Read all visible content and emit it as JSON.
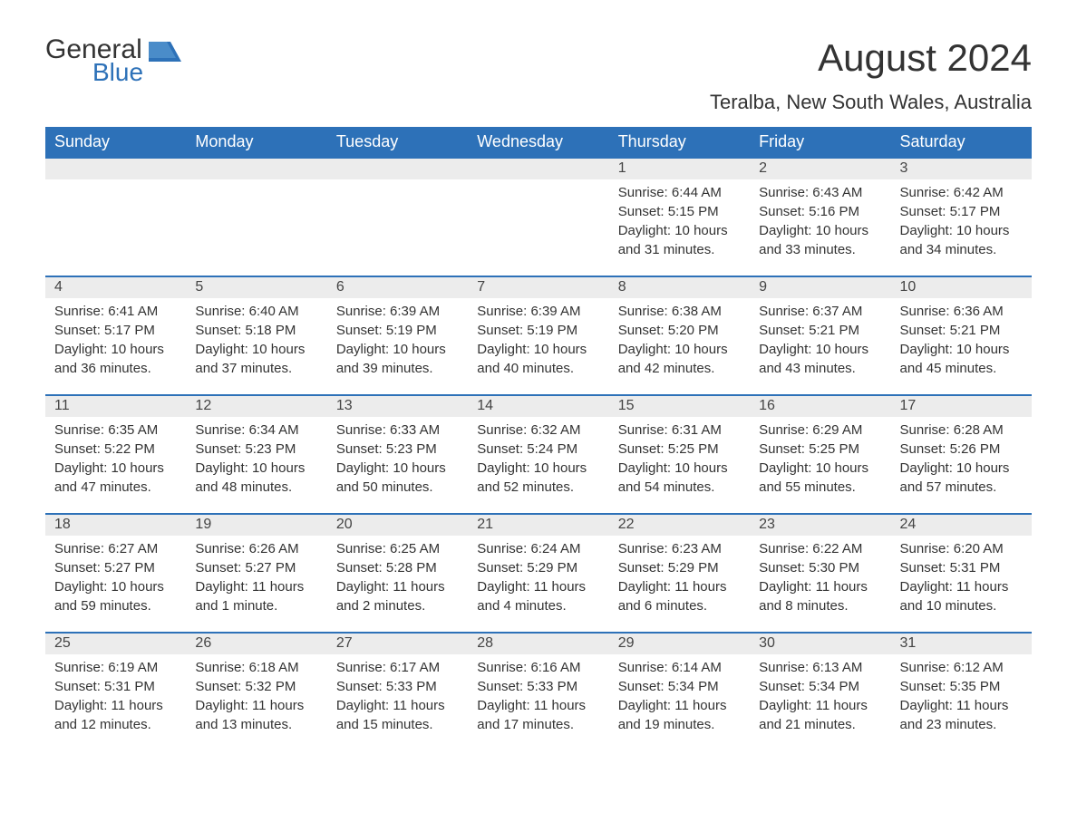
{
  "logo": {
    "general": "General",
    "blue": "Blue",
    "brand_gray": "#333333",
    "brand_blue": "#2d71b8"
  },
  "title": "August 2024",
  "subtitle": "Teralba, New South Wales, Australia",
  "colors": {
    "header_bg": "#2d71b8",
    "header_text": "#ffffff",
    "daynum_bg": "#ececec",
    "row_border": "#2d71b8",
    "body_text": "#333333",
    "background": "#ffffff"
  },
  "typography": {
    "title_fontsize": 42,
    "subtitle_fontsize": 22,
    "header_fontsize": 18,
    "daynum_fontsize": 16,
    "body_fontsize": 15
  },
  "weekdays": [
    "Sunday",
    "Monday",
    "Tuesday",
    "Wednesday",
    "Thursday",
    "Friday",
    "Saturday"
  ],
  "weeks": [
    [
      null,
      null,
      null,
      null,
      {
        "day": "1",
        "sunrise": "Sunrise: 6:44 AM",
        "sunset": "Sunset: 5:15 PM",
        "daylight1": "Daylight: 10 hours",
        "daylight2": "and 31 minutes."
      },
      {
        "day": "2",
        "sunrise": "Sunrise: 6:43 AM",
        "sunset": "Sunset: 5:16 PM",
        "daylight1": "Daylight: 10 hours",
        "daylight2": "and 33 minutes."
      },
      {
        "day": "3",
        "sunrise": "Sunrise: 6:42 AM",
        "sunset": "Sunset: 5:17 PM",
        "daylight1": "Daylight: 10 hours",
        "daylight2": "and 34 minutes."
      }
    ],
    [
      {
        "day": "4",
        "sunrise": "Sunrise: 6:41 AM",
        "sunset": "Sunset: 5:17 PM",
        "daylight1": "Daylight: 10 hours",
        "daylight2": "and 36 minutes."
      },
      {
        "day": "5",
        "sunrise": "Sunrise: 6:40 AM",
        "sunset": "Sunset: 5:18 PM",
        "daylight1": "Daylight: 10 hours",
        "daylight2": "and 37 minutes."
      },
      {
        "day": "6",
        "sunrise": "Sunrise: 6:39 AM",
        "sunset": "Sunset: 5:19 PM",
        "daylight1": "Daylight: 10 hours",
        "daylight2": "and 39 minutes."
      },
      {
        "day": "7",
        "sunrise": "Sunrise: 6:39 AM",
        "sunset": "Sunset: 5:19 PM",
        "daylight1": "Daylight: 10 hours",
        "daylight2": "and 40 minutes."
      },
      {
        "day": "8",
        "sunrise": "Sunrise: 6:38 AM",
        "sunset": "Sunset: 5:20 PM",
        "daylight1": "Daylight: 10 hours",
        "daylight2": "and 42 minutes."
      },
      {
        "day": "9",
        "sunrise": "Sunrise: 6:37 AM",
        "sunset": "Sunset: 5:21 PM",
        "daylight1": "Daylight: 10 hours",
        "daylight2": "and 43 minutes."
      },
      {
        "day": "10",
        "sunrise": "Sunrise: 6:36 AM",
        "sunset": "Sunset: 5:21 PM",
        "daylight1": "Daylight: 10 hours",
        "daylight2": "and 45 minutes."
      }
    ],
    [
      {
        "day": "11",
        "sunrise": "Sunrise: 6:35 AM",
        "sunset": "Sunset: 5:22 PM",
        "daylight1": "Daylight: 10 hours",
        "daylight2": "and 47 minutes."
      },
      {
        "day": "12",
        "sunrise": "Sunrise: 6:34 AM",
        "sunset": "Sunset: 5:23 PM",
        "daylight1": "Daylight: 10 hours",
        "daylight2": "and 48 minutes."
      },
      {
        "day": "13",
        "sunrise": "Sunrise: 6:33 AM",
        "sunset": "Sunset: 5:23 PM",
        "daylight1": "Daylight: 10 hours",
        "daylight2": "and 50 minutes."
      },
      {
        "day": "14",
        "sunrise": "Sunrise: 6:32 AM",
        "sunset": "Sunset: 5:24 PM",
        "daylight1": "Daylight: 10 hours",
        "daylight2": "and 52 minutes."
      },
      {
        "day": "15",
        "sunrise": "Sunrise: 6:31 AM",
        "sunset": "Sunset: 5:25 PM",
        "daylight1": "Daylight: 10 hours",
        "daylight2": "and 54 minutes."
      },
      {
        "day": "16",
        "sunrise": "Sunrise: 6:29 AM",
        "sunset": "Sunset: 5:25 PM",
        "daylight1": "Daylight: 10 hours",
        "daylight2": "and 55 minutes."
      },
      {
        "day": "17",
        "sunrise": "Sunrise: 6:28 AM",
        "sunset": "Sunset: 5:26 PM",
        "daylight1": "Daylight: 10 hours",
        "daylight2": "and 57 minutes."
      }
    ],
    [
      {
        "day": "18",
        "sunrise": "Sunrise: 6:27 AM",
        "sunset": "Sunset: 5:27 PM",
        "daylight1": "Daylight: 10 hours",
        "daylight2": "and 59 minutes."
      },
      {
        "day": "19",
        "sunrise": "Sunrise: 6:26 AM",
        "sunset": "Sunset: 5:27 PM",
        "daylight1": "Daylight: 11 hours",
        "daylight2": "and 1 minute."
      },
      {
        "day": "20",
        "sunrise": "Sunrise: 6:25 AM",
        "sunset": "Sunset: 5:28 PM",
        "daylight1": "Daylight: 11 hours",
        "daylight2": "and 2 minutes."
      },
      {
        "day": "21",
        "sunrise": "Sunrise: 6:24 AM",
        "sunset": "Sunset: 5:29 PM",
        "daylight1": "Daylight: 11 hours",
        "daylight2": "and 4 minutes."
      },
      {
        "day": "22",
        "sunrise": "Sunrise: 6:23 AM",
        "sunset": "Sunset: 5:29 PM",
        "daylight1": "Daylight: 11 hours",
        "daylight2": "and 6 minutes."
      },
      {
        "day": "23",
        "sunrise": "Sunrise: 6:22 AM",
        "sunset": "Sunset: 5:30 PM",
        "daylight1": "Daylight: 11 hours",
        "daylight2": "and 8 minutes."
      },
      {
        "day": "24",
        "sunrise": "Sunrise: 6:20 AM",
        "sunset": "Sunset: 5:31 PM",
        "daylight1": "Daylight: 11 hours",
        "daylight2": "and 10 minutes."
      }
    ],
    [
      {
        "day": "25",
        "sunrise": "Sunrise: 6:19 AM",
        "sunset": "Sunset: 5:31 PM",
        "daylight1": "Daylight: 11 hours",
        "daylight2": "and 12 minutes."
      },
      {
        "day": "26",
        "sunrise": "Sunrise: 6:18 AM",
        "sunset": "Sunset: 5:32 PM",
        "daylight1": "Daylight: 11 hours",
        "daylight2": "and 13 minutes."
      },
      {
        "day": "27",
        "sunrise": "Sunrise: 6:17 AM",
        "sunset": "Sunset: 5:33 PM",
        "daylight1": "Daylight: 11 hours",
        "daylight2": "and 15 minutes."
      },
      {
        "day": "28",
        "sunrise": "Sunrise: 6:16 AM",
        "sunset": "Sunset: 5:33 PM",
        "daylight1": "Daylight: 11 hours",
        "daylight2": "and 17 minutes."
      },
      {
        "day": "29",
        "sunrise": "Sunrise: 6:14 AM",
        "sunset": "Sunset: 5:34 PM",
        "daylight1": "Daylight: 11 hours",
        "daylight2": "and 19 minutes."
      },
      {
        "day": "30",
        "sunrise": "Sunrise: 6:13 AM",
        "sunset": "Sunset: 5:34 PM",
        "daylight1": "Daylight: 11 hours",
        "daylight2": "and 21 minutes."
      },
      {
        "day": "31",
        "sunrise": "Sunrise: 6:12 AM",
        "sunset": "Sunset: 5:35 PM",
        "daylight1": "Daylight: 11 hours",
        "daylight2": "and 23 minutes."
      }
    ]
  ]
}
